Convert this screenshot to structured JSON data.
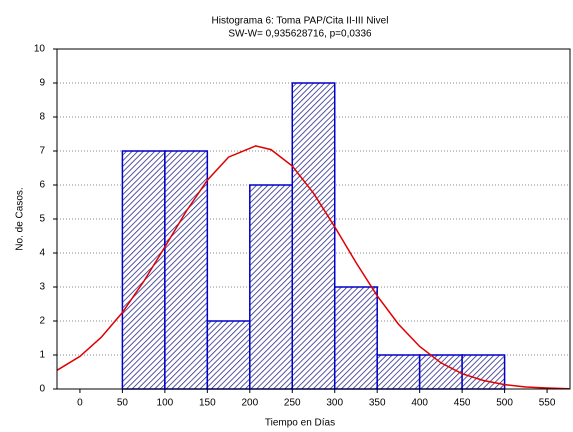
{
  "chart_data": {
    "type": "histogram",
    "title": "Histograma 6: Toma PAP/Cita II-III Nivel",
    "subtitle": "SW-W= 0,935628716, p=0,0336",
    "x_label": "Tiempo en Días",
    "y_label": "No. de Casos.",
    "bins": [
      0,
      50,
      100,
      150,
      200,
      250,
      300,
      350,
      400,
      450,
      500
    ],
    "values": [
      0,
      7,
      7,
      2,
      6,
      9,
      3,
      1,
      1,
      1
    ],
    "color": "#0000cc",
    "curve": {
      "color": "#e00000",
      "x": [
        -27,
        0,
        25,
        50,
        75,
        100,
        125,
        150,
        175,
        207,
        225,
        250,
        275,
        300,
        325,
        350,
        375,
        400,
        425,
        450,
        475,
        500,
        525,
        550,
        576
      ],
      "values": [
        0.55,
        0.96,
        1.52,
        2.25,
        3.16,
        4.18,
        5.22,
        6.14,
        6.82,
        7.15,
        7.04,
        6.56,
        5.76,
        4.77,
        3.72,
        2.74,
        1.91,
        1.25,
        0.77,
        0.45,
        0.25,
        0.13,
        0.06,
        0.03,
        0.01
      ]
    },
    "xlim": [
      -27,
      577
    ],
    "ylim": [
      0,
      10
    ],
    "xticks": [
      0,
      50,
      100,
      150,
      200,
      250,
      300,
      350,
      400,
      450,
      500,
      550
    ],
    "yticks": [
      0,
      1,
      2,
      3,
      4,
      5,
      6,
      7,
      8,
      9,
      10
    ],
    "grid": true
  }
}
